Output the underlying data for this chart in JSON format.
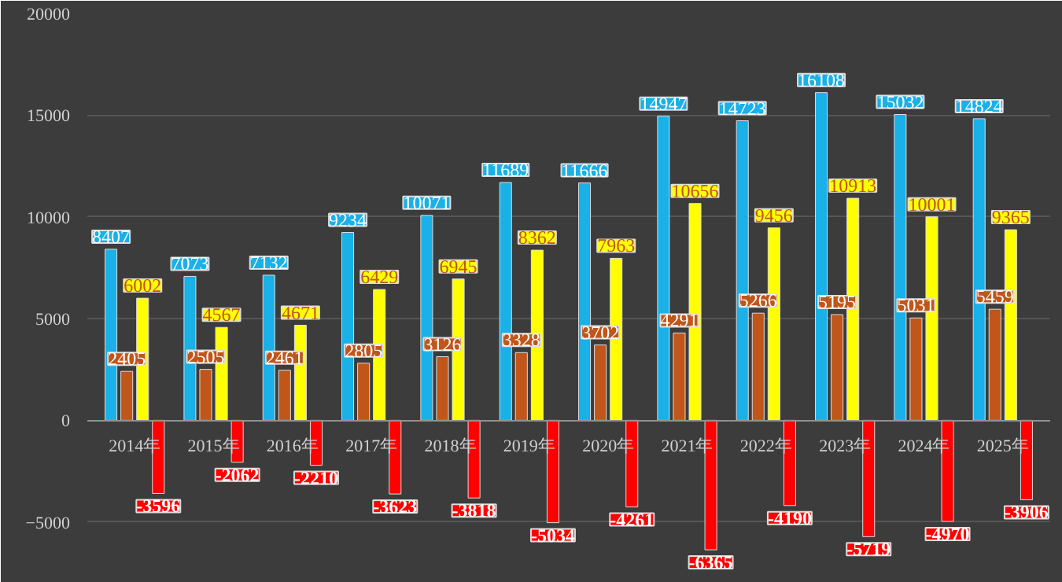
{
  "chart_data": {
    "type": "bar",
    "categories": [
      "2014年",
      "2015年",
      "2016年",
      "2017年",
      "2018年",
      "2019年",
      "2020年",
      "2021年",
      "2022年",
      "2023年",
      "2024年",
      "2025年"
    ],
    "series": [
      {
        "color": "#1ab0e8",
        "values": [
          8407,
          7073,
          7132,
          9234,
          10071,
          11689,
          11666,
          14947,
          14723,
          16108,
          15032,
          14824
        ]
      },
      {
        "color": "#c0561a",
        "values": [
          2405,
          2505,
          2461,
          2805,
          3126,
          3328,
          3702,
          4291,
          5266,
          5195,
          5031,
          5459
        ]
      },
      {
        "color": "#ffff00",
        "values": [
          6002,
          4567,
          4671,
          6429,
          6945,
          8362,
          7963,
          10656,
          9456,
          10913,
          10001,
          9365
        ]
      },
      {
        "color": "#ff0000",
        "values": [
          -3596,
          -2062,
          -2210,
          -3623,
          -3818,
          -5034,
          -4261,
          -6365,
          -4190,
          -5719,
          -4970,
          -3906
        ]
      }
    ],
    "ylim": [
      -7600,
      20000
    ],
    "yticks": [
      -5000,
      0,
      5000,
      10000,
      15000,
      20000
    ],
    "grid": "y",
    "data_labels": true
  }
}
